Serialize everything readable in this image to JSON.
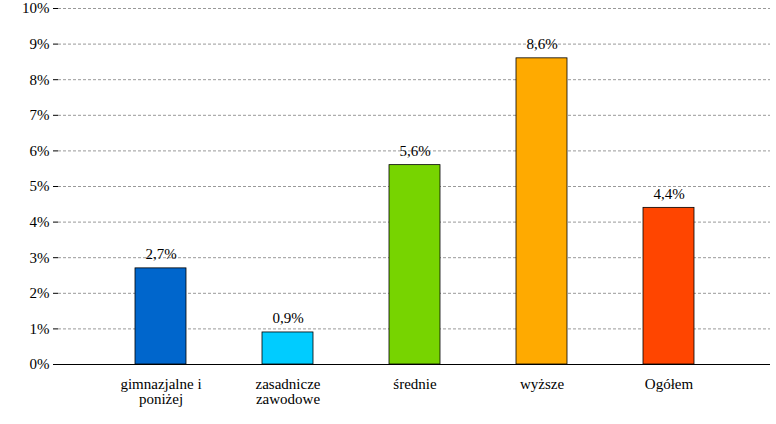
{
  "chart_data": {
    "type": "bar",
    "categories": [
      "gimnazjalne i poniżej",
      "zasadnicze zawodowe",
      "średnie",
      "wyższe",
      "Ogółem"
    ],
    "values": [
      2.7,
      0.9,
      5.6,
      8.6,
      4.4
    ],
    "value_labels": [
      "2,7%",
      "0,9%",
      "5,6%",
      "8,6%",
      "4,4%"
    ],
    "colors": [
      "#0066cc",
      "#00ccff",
      "#77d400",
      "#ffaa00",
      "#ff4500"
    ],
    "ylim": [
      0,
      10
    ],
    "yticks": [
      {
        "value": 0,
        "label": "0%"
      },
      {
        "value": 1,
        "label": "1%"
      },
      {
        "value": 2,
        "label": "2%"
      },
      {
        "value": 3,
        "label": "3%"
      },
      {
        "value": 4,
        "label": "4%"
      },
      {
        "value": 5,
        "label": "5%"
      },
      {
        "value": 6,
        "label": "6%"
      },
      {
        "value": 7,
        "label": "7%"
      },
      {
        "value": 8,
        "label": "8%"
      },
      {
        "value": 9,
        "label": "9%"
      },
      {
        "value": 10,
        "label": "10%"
      }
    ],
    "grid": true,
    "data_labels": true
  }
}
